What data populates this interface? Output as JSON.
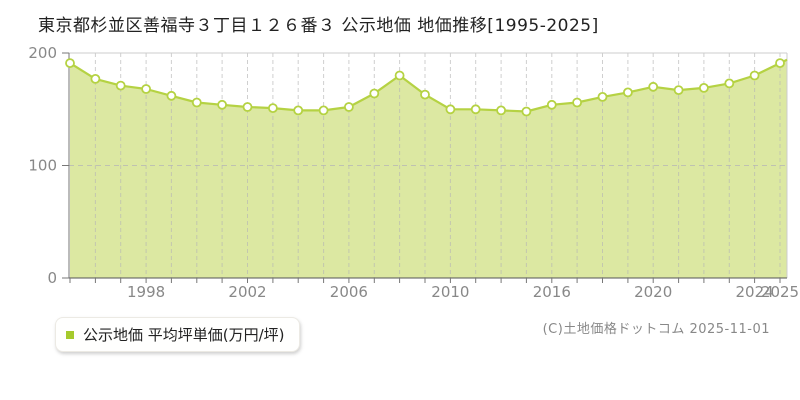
{
  "title": "東京都杉並区善福寺３丁目１２６番３ 公示地価 地価推移[1995-2025]",
  "legend": {
    "label": "公示地価 平均坪単価(万円/坪)",
    "marker_color": "#a6ca2c"
  },
  "footer": {
    "copyright": "(C)土地価格ドットコム 2025-11-01"
  },
  "colors": {
    "line": "#b5d243",
    "fill": "#dce8a2",
    "marker_fill": "#ffffff",
    "grid": "#b5b5b5",
    "axis": "#777777",
    "axis_bottom": "#555555",
    "border": "#cccccc",
    "tick_text": "#888888",
    "title_text": "#222222"
  },
  "chart_data": {
    "type": "area",
    "title": "公示地価 地価推移[1995-2025]",
    "xlabel": "",
    "ylabel": "平均坪単価(万円/坪)",
    "ylim": [
      0,
      200
    ],
    "y_ticks": [
      0,
      100,
      200
    ],
    "grid": true,
    "legend_position": "bottom-left",
    "years": [
      "1995",
      "1996",
      "1997",
      "1998",
      "1999",
      "2000",
      "2001",
      "2002",
      "2003",
      "2004",
      "2005",
      "2006",
      "2007",
      "2008",
      "2009",
      "2010",
      "2013",
      "2014",
      "2015",
      "2016",
      "2017",
      "2018",
      "2019",
      "2020",
      "2021",
      "2022",
      "2023",
      "2024",
      "2025"
    ],
    "values": [
      191,
      177,
      171,
      168,
      162,
      156,
      154,
      152,
      151,
      149,
      149,
      152,
      164,
      180,
      163,
      150,
      150,
      149,
      148,
      154,
      156,
      161,
      165,
      170,
      167,
      169,
      173,
      180,
      191
    ],
    "x_tick_labels": [
      {
        "slot": 3,
        "label": "1998"
      },
      {
        "slot": 7,
        "label": "2002"
      },
      {
        "slot": 11,
        "label": "2006"
      },
      {
        "slot": 15,
        "label": "2010"
      },
      {
        "slot": 19,
        "label": "2016"
      },
      {
        "slot": 23,
        "label": "2020"
      },
      {
        "slot": 27,
        "label": "2024"
      },
      {
        "slot": 28,
        "label": "2025"
      }
    ]
  }
}
